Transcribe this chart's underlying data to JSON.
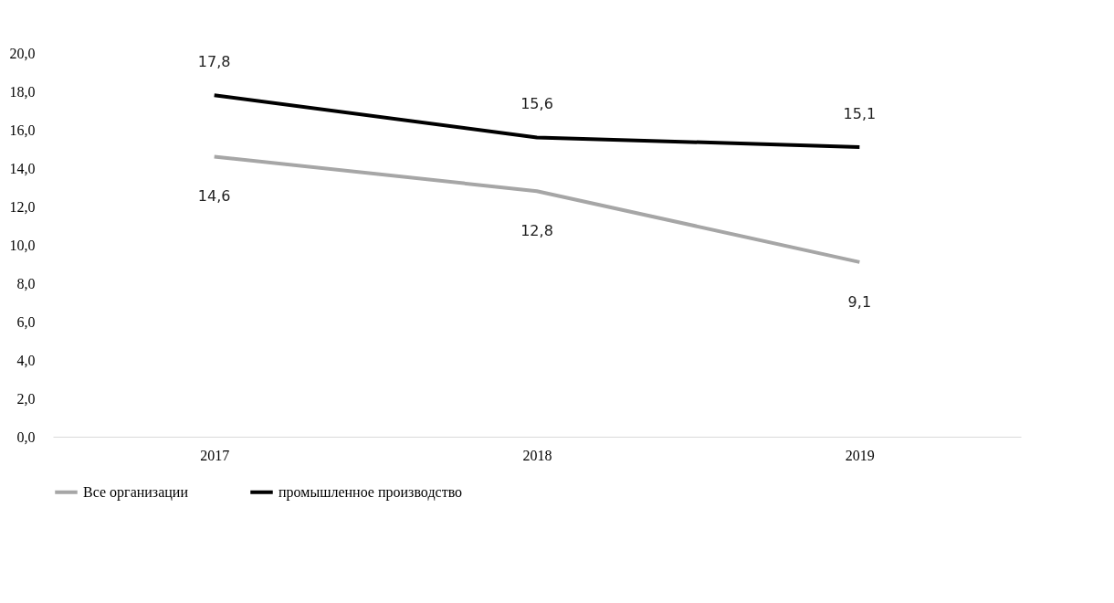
{
  "chart_data": {
    "type": "line",
    "categories": [
      "2017",
      "2018",
      "2019"
    ],
    "series": [
      {
        "name": "Все организации",
        "color": "#a6a6a6",
        "values": [
          14.6,
          12.8,
          9.1
        ],
        "value_labels": [
          "14,6",
          "12,8",
          "9,1"
        ]
      },
      {
        "name": "промышленное производство",
        "color": "#000000",
        "values": [
          17.8,
          15.6,
          15.1
        ],
        "value_labels": [
          "17,8",
          "15,6",
          "15,1"
        ]
      }
    ],
    "ylim": [
      0,
      20
    ],
    "yticks": [
      {
        "value": 0,
        "label": "0,0"
      },
      {
        "value": 2,
        "label": "2,0"
      },
      {
        "value": 4,
        "label": "4,0"
      },
      {
        "value": 6,
        "label": "6,0"
      },
      {
        "value": 8,
        "label": "8,0"
      },
      {
        "value": 10,
        "label": "10,0"
      },
      {
        "value": 12,
        "label": "12,0"
      },
      {
        "value": 14,
        "label": "14,0"
      },
      {
        "value": 16,
        "label": "16,0"
      },
      {
        "value": 18,
        "label": "18,0"
      },
      {
        "value": 20,
        "label": "20,0"
      }
    ],
    "grid": false,
    "legend": "bottom",
    "marker": "none",
    "line_style": "solid"
  }
}
